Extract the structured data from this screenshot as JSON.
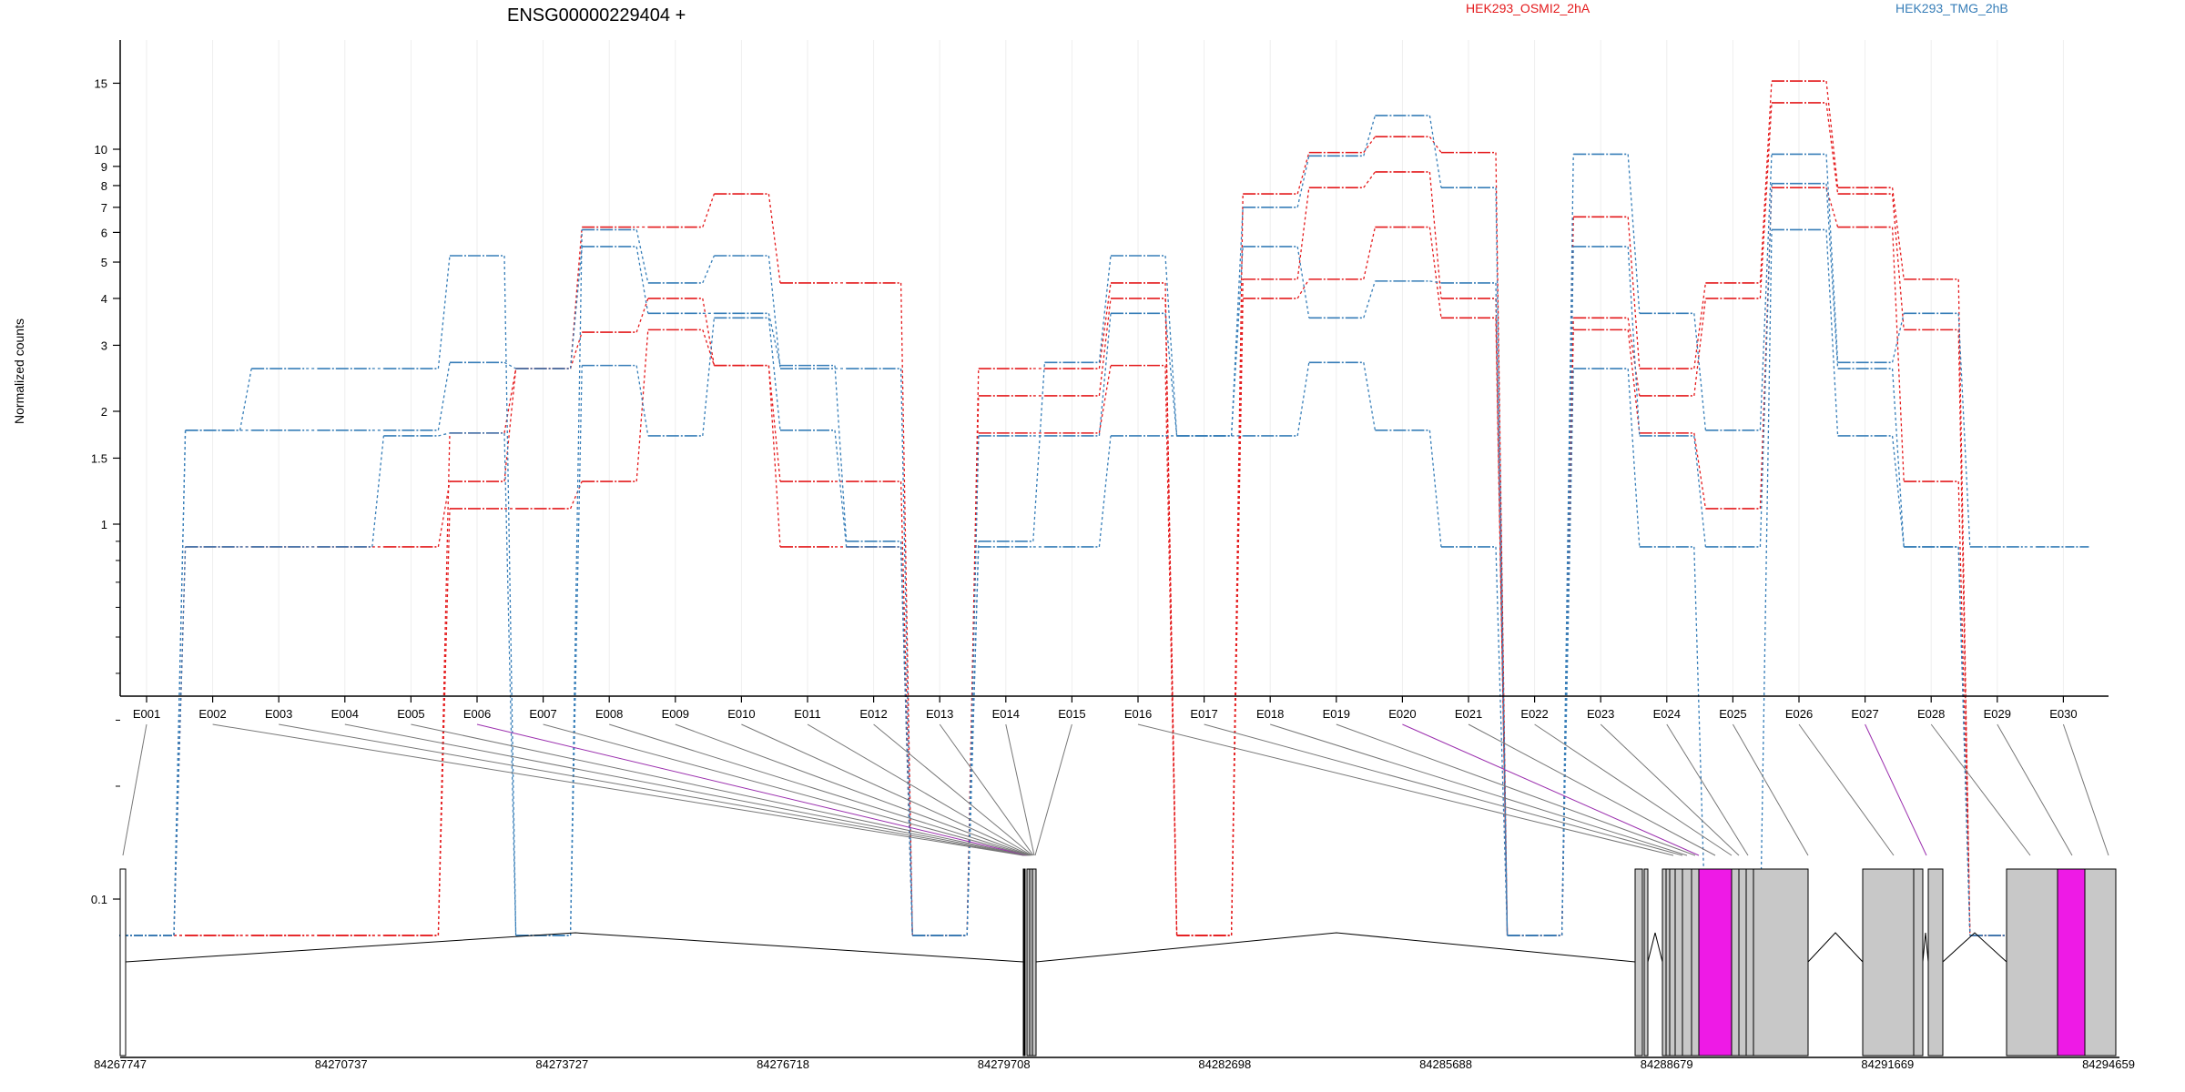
{
  "chart_data": {
    "type": "line",
    "title": "ENSG00000229404 +",
    "ylabel": "Normalized counts",
    "y_scale": "log",
    "ylim": [
      0.08,
      17
    ],
    "y_ticks": [
      {
        "v": 15,
        "label": "15"
      },
      {
        "v": 10,
        "label": "10"
      },
      {
        "v": 9,
        "label": "9"
      },
      {
        "v": 8,
        "label": "8"
      },
      {
        "v": 7,
        "label": "7"
      },
      {
        "v": 6,
        "label": "6"
      },
      {
        "v": 5,
        "label": "5"
      },
      {
        "v": 4,
        "label": "4"
      },
      {
        "v": 3,
        "label": "3"
      },
      {
        "v": 2,
        "label": "2"
      },
      {
        "v": 1.5,
        "label": "1.5"
      },
      {
        "v": 1,
        "label": "1"
      },
      {
        "v": 0.1,
        "label": "0.1"
      }
    ],
    "categories": [
      "E001",
      "E002",
      "E003",
      "E004",
      "E005",
      "E006",
      "E007",
      "E008",
      "E009",
      "E010",
      "E011",
      "E012",
      "E013",
      "E014",
      "E015",
      "E016",
      "E017",
      "E018",
      "E019",
      "E020",
      "E021",
      "E022",
      "E023",
      "E024",
      "E025",
      "E026",
      "E027",
      "E028",
      "E029",
      "E030"
    ],
    "legend": [
      {
        "name": "HEK293_OSMI2_2hA",
        "color": "#e41a1c"
      },
      {
        "name": "HEK293_TMG_2hB",
        "color": "#377eb8"
      }
    ],
    "series": [
      {
        "color": "#e41a1c",
        "values": [
          0.08,
          0.08,
          0.08,
          0.08,
          0.08,
          1.75,
          2.6,
          6.2,
          6.2,
          7.6,
          4.4,
          4.4,
          0.08,
          2.6,
          2.6,
          4.4,
          0.08,
          7.6,
          9.8,
          10.8,
          9.8,
          0.08,
          6.6,
          2.6,
          4.4,
          15.2,
          7.9,
          4.5,
          0.08,
          0.08
        ]
      },
      {
        "color": "#e41a1c",
        "values": [
          0.08,
          0.87,
          0.87,
          0.87,
          0.87,
          1.3,
          2.6,
          3.25,
          4.0,
          2.65,
          1.3,
          1.3,
          0.08,
          2.2,
          2.2,
          4.0,
          0.08,
          4.5,
          7.9,
          8.7,
          4.0,
          0.08,
          3.55,
          2.2,
          4.0,
          13.3,
          7.6,
          3.3,
          0.08,
          0.08
        ]
      },
      {
        "color": "#e41a1c",
        "values": [
          0.08,
          0.08,
          0.08,
          0.08,
          0.08,
          1.1,
          1.1,
          1.3,
          3.3,
          2.65,
          0.87,
          0.87,
          0.08,
          1.75,
          1.75,
          2.65,
          0.08,
          4.0,
          4.5,
          6.2,
          3.55,
          0.08,
          3.3,
          1.75,
          1.1,
          7.9,
          6.2,
          1.3,
          0.08,
          0.08
        ]
      },
      {
        "color": "#377eb8",
        "values": [
          0.08,
          1.78,
          2.6,
          2.6,
          2.6,
          5.2,
          0.08,
          6.1,
          4.4,
          5.2,
          2.6,
          2.6,
          0.08,
          0.9,
          2.7,
          5.2,
          1.72,
          7.0,
          9.6,
          12.3,
          7.9,
          0.08,
          9.7,
          3.65,
          1.78,
          9.7,
          2.7,
          3.65,
          0.87,
          0.87
        ]
      },
      {
        "color": "#377eb8",
        "values": [
          0.08,
          1.78,
          1.78,
          1.78,
          1.78,
          2.7,
          2.6,
          5.5,
          3.65,
          3.65,
          2.65,
          0.9,
          0.08,
          1.72,
          1.72,
          3.65,
          1.72,
          5.5,
          3.55,
          4.45,
          4.4,
          0.08,
          5.5,
          1.72,
          0.87,
          8.1,
          2.6,
          0.87,
          0.08,
          0.08
        ]
      },
      {
        "color": "#377eb8",
        "values": [
          0.08,
          0.87,
          0.87,
          0.87,
          1.72,
          1.75,
          0.08,
          2.65,
          1.72,
          3.55,
          1.78,
          0.87,
          0.08,
          0.87,
          0.87,
          1.72,
          1.72,
          1.72,
          2.7,
          1.78,
          0.87,
          0.08,
          2.6,
          0.87,
          0.08,
          6.1,
          1.72,
          0.87,
          0.08,
          0.08
        ]
      }
    ]
  },
  "gene_model": {
    "coord_labels": [
      "84267747",
      "84270737",
      "84273727",
      "84276718",
      "84279708",
      "84282698",
      "84285688",
      "84288679",
      "84291669",
      "84294659"
    ],
    "highlight_color": "#ee1ae6",
    "exon_color": "#c8c8c8"
  }
}
